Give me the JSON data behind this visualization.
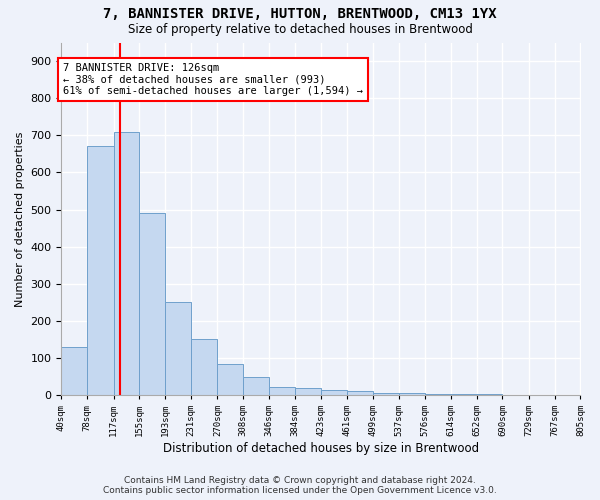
{
  "title": "7, BANNISTER DRIVE, HUTTON, BRENTWOOD, CM13 1YX",
  "subtitle": "Size of property relative to detached houses in Brentwood",
  "xlabel": "Distribution of detached houses by size in Brentwood",
  "ylabel": "Number of detached properties",
  "bar_heights": [
    130,
    670,
    710,
    490,
    250,
    150,
    85,
    50,
    22,
    18,
    14,
    10,
    7,
    5,
    4,
    3,
    2,
    1,
    1,
    0
  ],
  "bin_edges": [
    40,
    78,
    117,
    155,
    193,
    231,
    270,
    308,
    346,
    384,
    423,
    461,
    499,
    537,
    576,
    614,
    652,
    690,
    729,
    767,
    805
  ],
  "x_labels": [
    "40sqm",
    "78sqm",
    "117sqm",
    "155sqm",
    "193sqm",
    "231sqm",
    "270sqm",
    "308sqm",
    "346sqm",
    "384sqm",
    "423sqm",
    "461sqm",
    "499sqm",
    "537sqm",
    "576sqm",
    "614sqm",
    "652sqm",
    "690sqm",
    "729sqm",
    "767sqm",
    "805sqm"
  ],
  "bar_color": "#c5d8f0",
  "bar_edge_color": "#6fa0cc",
  "redline_x": 126,
  "annotation_line1": "7 BANNISTER DRIVE: 126sqm",
  "annotation_line2": "← 38% of detached houses are smaller (993)",
  "annotation_line3": "61% of semi-detached houses are larger (1,594) →",
  "annotation_box_color": "white",
  "annotation_box_edge": "red",
  "ylim": [
    0,
    950
  ],
  "yticks": [
    0,
    100,
    200,
    300,
    400,
    500,
    600,
    700,
    800,
    900
  ],
  "footer_line1": "Contains HM Land Registry data © Crown copyright and database right 2024.",
  "footer_line2": "Contains public sector information licensed under the Open Government Licence v3.0.",
  "bg_color": "#eef2fa",
  "grid_color": "white"
}
